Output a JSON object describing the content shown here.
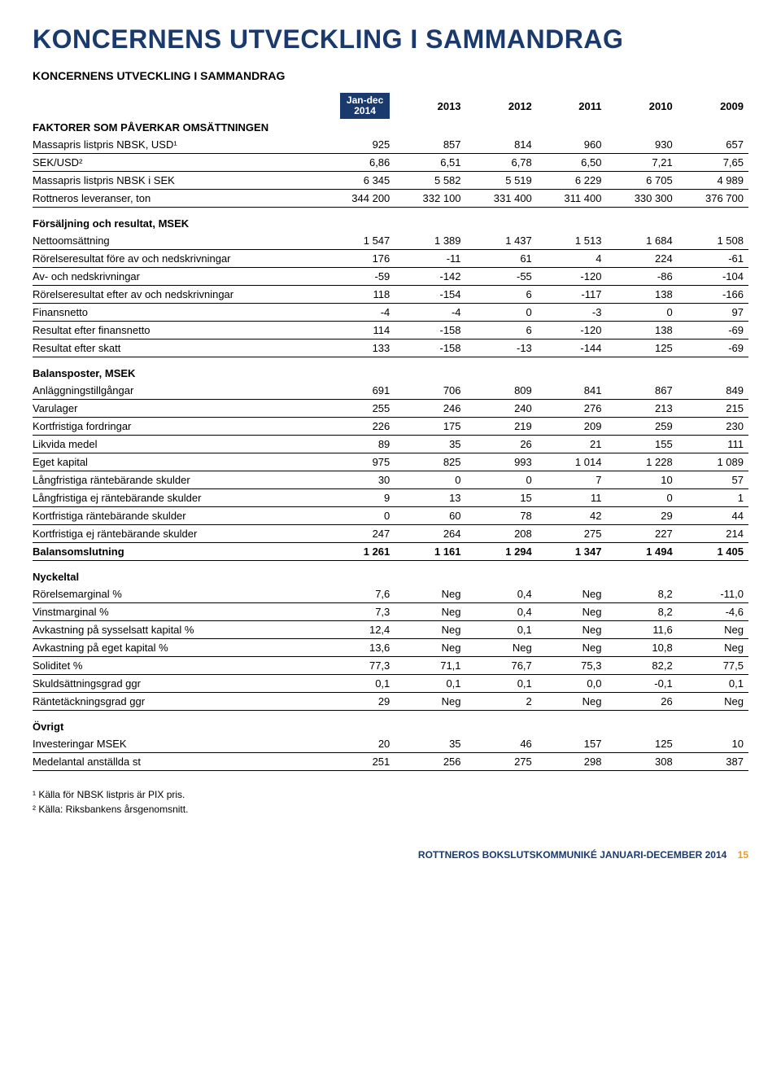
{
  "title": "KONCERNENS UTVECKLING I SAMMANDRAG",
  "subtitle": "KONCERNENS UTVECKLING I SAMMANDRAG",
  "header_box": {
    "line1": "Jan-dec",
    "line2": "2014"
  },
  "year_cols": [
    "2013",
    "2012",
    "2011",
    "2010",
    "2009"
  ],
  "sections": [
    {
      "heading": "FAKTORER SOM PÅVERKAR OMSÄTTNINGEN",
      "heading_inline": true,
      "rows": [
        {
          "label": "Massapris listpris NBSK, USD¹",
          "vals": [
            "925",
            "857",
            "814",
            "960",
            "930",
            "657"
          ]
        },
        {
          "label": "SEK/USD²",
          "vals": [
            "6,86",
            "6,51",
            "6,78",
            "6,50",
            "7,21",
            "7,65"
          ]
        },
        {
          "label": "Massapris listpris NBSK i SEK",
          "vals": [
            "6 345",
            "5 582",
            "5 519",
            "6 229",
            "6 705",
            "4 989"
          ]
        },
        {
          "label": "Rottneros leveranser, ton",
          "vals": [
            "344 200",
            "332 100",
            "331 400",
            "311 400",
            "330 300",
            "376 700"
          ]
        }
      ]
    },
    {
      "heading": "Försäljning och resultat, MSEK",
      "rows": [
        {
          "label": "Nettoomsättning",
          "vals": [
            "1 547",
            "1 389",
            "1 437",
            "1 513",
            "1 684",
            "1 508"
          ]
        },
        {
          "label": "Rörelseresultat före av och nedskrivningar",
          "vals": [
            "176",
            "-11",
            "61",
            "4",
            "224",
            "-61"
          ]
        },
        {
          "label": "Av- och nedskrivningar",
          "vals": [
            "-59",
            "-142",
            "-55",
            "-120",
            "-86",
            "-104"
          ]
        },
        {
          "label": "Rörelseresultat efter av och nedskrivningar",
          "vals": [
            "118",
            "-154",
            "6",
            "-117",
            "138",
            "-166"
          ]
        },
        {
          "label": "Finansnetto",
          "vals": [
            "-4",
            "-4",
            "0",
            "-3",
            "0",
            "97"
          ]
        },
        {
          "label": "Resultat efter finansnetto",
          "vals": [
            "114",
            "-158",
            "6",
            "-120",
            "138",
            "-69"
          ]
        },
        {
          "label": "Resultat efter skatt",
          "vals": [
            "133",
            "-158",
            "-13",
            "-144",
            "125",
            "-69"
          ]
        }
      ]
    },
    {
      "heading": "Balansposter, MSEK",
      "rows": [
        {
          "label": "Anläggningstillgångar",
          "vals": [
            "691",
            "706",
            "809",
            "841",
            "867",
            "849"
          ]
        },
        {
          "label": "Varulager",
          "vals": [
            "255",
            "246",
            "240",
            "276",
            "213",
            "215"
          ]
        },
        {
          "label": "Kortfristiga fordringar",
          "vals": [
            "226",
            "175",
            "219",
            "209",
            "259",
            "230"
          ]
        },
        {
          "label": "Likvida medel",
          "vals": [
            "89",
            "35",
            "26",
            "21",
            "155",
            "111"
          ]
        },
        {
          "label": "Eget kapital",
          "vals": [
            "975",
            "825",
            "993",
            "1 014",
            "1 228",
            "1 089"
          ]
        },
        {
          "label": "Långfristiga räntebärande skulder",
          "vals": [
            "30",
            "0",
            "0",
            "7",
            "10",
            "57"
          ]
        },
        {
          "label": "Långfristiga ej räntebärande skulder",
          "vals": [
            "9",
            "13",
            "15",
            "11",
            "0",
            "1"
          ]
        },
        {
          "label": "Kortfristiga räntebärande skulder",
          "vals": [
            "0",
            "60",
            "78",
            "42",
            "29",
            "44"
          ]
        },
        {
          "label": "Kortfristiga ej räntebärande skulder",
          "vals": [
            "247",
            "264",
            "208",
            "275",
            "227",
            "214"
          ]
        },
        {
          "label": "Balansomslutning",
          "vals": [
            "1 261",
            "1 161",
            "1 294",
            "1 347",
            "1 494",
            "1 405"
          ],
          "bold": true
        }
      ]
    },
    {
      "heading": "Nyckeltal",
      "rows": [
        {
          "label": "Rörelsemarginal %",
          "vals": [
            "7,6",
            "Neg",
            "0,4",
            "Neg",
            "8,2",
            "-11,0"
          ]
        },
        {
          "label": "Vinstmarginal %",
          "vals": [
            "7,3",
            "Neg",
            "0,4",
            "Neg",
            "8,2",
            "-4,6"
          ]
        },
        {
          "label": "Avkastning på sysselsatt kapital %",
          "vals": [
            "12,4",
            "Neg",
            "0,1",
            "Neg",
            "11,6",
            "Neg"
          ]
        },
        {
          "label": "Avkastning på eget kapital %",
          "vals": [
            "13,6",
            "Neg",
            "Neg",
            "Neg",
            "10,8",
            "Neg"
          ]
        },
        {
          "label": "Soliditet %",
          "vals": [
            "77,3",
            "71,1",
            "76,7",
            "75,3",
            "82,2",
            "77,5"
          ]
        },
        {
          "label": "Skuldsättningsgrad ggr",
          "vals": [
            "0,1",
            "0,1",
            "0,1",
            "0,0",
            "-0,1",
            "0,1"
          ]
        },
        {
          "label": "Räntetäckningsgrad ggr",
          "vals": [
            "29",
            "Neg",
            "2",
            "Neg",
            "26",
            "Neg"
          ]
        }
      ]
    },
    {
      "heading": "Övrigt",
      "rows": [
        {
          "label": "Investeringar MSEK",
          "vals": [
            "20",
            "35",
            "46",
            "157",
            "125",
            "10"
          ]
        },
        {
          "label": "Medelantal anställda st",
          "vals": [
            "251",
            "256",
            "275",
            "298",
            "308",
            "387"
          ]
        }
      ]
    }
  ],
  "footnotes": [
    "¹ Källa för NBSK listpris är PIX pris.",
    "² Källa: Riksbankens årsgenomsnitt."
  ],
  "footer_text": "ROTTNEROS BOKSLUTSKOMMUNIKÉ JANUARI-DECEMBER 2014",
  "footer_page": "15"
}
